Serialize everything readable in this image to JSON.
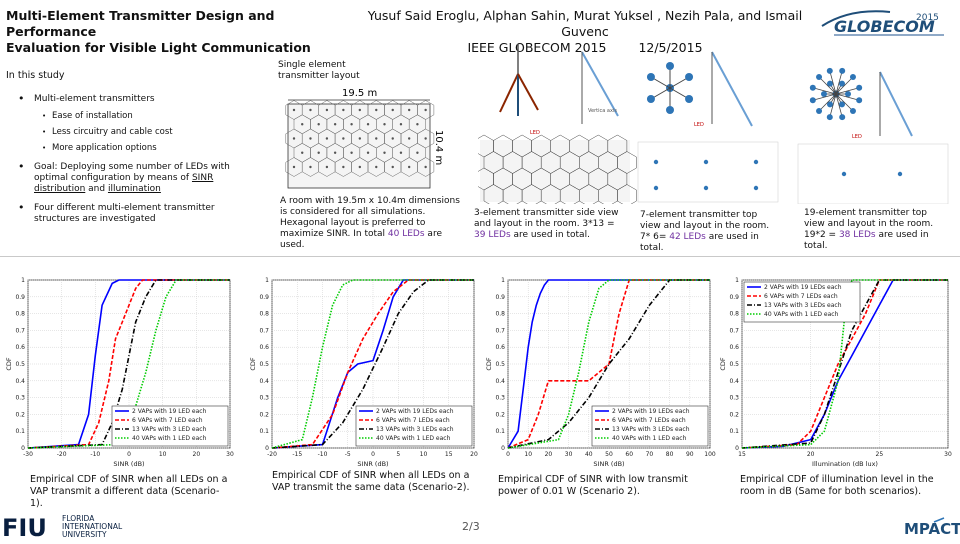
{
  "header": {
    "title_line1": "Multi-Element Transmitter Design and Performance",
    "title_line2": "Evaluation for Visible Light Communication",
    "authors": "Yusuf Said Eroglu, Alphan Sahin, Murat Yuksel , Ismail Guvenc",
    "authors_full": "Yusuf Said Eroglu, Alphan Sahin, Murat Yuksel , Nezih Pala, and Ismail Guvenc",
    "venue": "IEEE GLOBECOM 2015",
    "date": "12/5/2015"
  },
  "study": {
    "heading": "In this study",
    "bullet1": "Multi-element transmitters",
    "sub": [
      "Ease of installation",
      "Less circuitry and cable cost",
      "More application options"
    ],
    "bullet2_a": "Goal: Deploying some number of LEDs with optimal configuration by means of ",
    "bullet2_u1": "SINR distribution",
    "bullet2_b": " and ",
    "bullet2_u2": "illumination",
    "bullet3": "Four  different multi-element transmitter structures are investigated"
  },
  "single": {
    "label_line1": "Single element",
    "label_line2": "transmitter layout",
    "room_width": "19.5 m",
    "room_height": "10.4 m",
    "caption_a": "A room with 19.5m x 10.4m dimensions is considered for all simulations.  Hexagonal layout is preferred to maximize SINR. In total ",
    "caption_leds": "40 LEDs",
    "caption_b": " are used."
  },
  "structures": [
    {
      "caption_a": "3-element transmitter side view and layout in the room. 3*13 = ",
      "leds": "39 LEDs",
      "caption_b": " are used in total.",
      "label1": "LED",
      "label2": "Vertica axis"
    },
    {
      "caption_a": "7-element transmitter top view and layout in the room. 7* 6= ",
      "leds": "42 LEDs",
      "caption_b": " are used in total.",
      "label1": "LED"
    },
    {
      "caption_a": "19-element transmitter top view and layout in the room. 19*2 = ",
      "leds": "38 LEDs",
      "caption_b": " are used in total.",
      "label1": "LED"
    }
  ],
  "chart_data": [
    {
      "type": "line",
      "title": "",
      "xlabel": "SINR (dB)",
      "ylabel": "CDF",
      "xlim": [
        -30,
        30
      ],
      "ylim": [
        0,
        1
      ],
      "xticks": [
        "-30",
        "-20",
        "-10",
        "0",
        "10",
        "20",
        "30"
      ],
      "yticks": [
        "0",
        "0.1",
        "0.2",
        "0.3",
        "0.4",
        "0.5",
        "0.6",
        "0.7",
        "0.8",
        "0.9",
        "1"
      ],
      "legend_position": "bottom-right",
      "series": [
        {
          "name": "2 VAPs with 19 LED each",
          "color": "#0000ff",
          "style": "solid",
          "x": [
            -30,
            -15,
            -12,
            -10,
            -8,
            -5,
            -3,
            30
          ],
          "y": [
            0,
            0.02,
            0.2,
            0.55,
            0.85,
            0.98,
            1.0,
            1.0
          ]
        },
        {
          "name": "6 VAPs with 7 LED each",
          "color": "#ff0000",
          "style": "dashed",
          "x": [
            -30,
            -12,
            -9,
            -6,
            -4,
            -2,
            0,
            2,
            4,
            30
          ],
          "y": [
            0,
            0.02,
            0.15,
            0.4,
            0.65,
            0.75,
            0.85,
            0.95,
            1.0,
            1.0
          ]
        },
        {
          "name": "13 VAPs with 3 LED each",
          "color": "#000000",
          "style": "dashdot",
          "x": [
            -30,
            -8,
            -5,
            -2,
            0,
            2,
            5,
            8,
            30
          ],
          "y": [
            0,
            0.02,
            0.15,
            0.35,
            0.55,
            0.75,
            0.9,
            1.0,
            1.0
          ]
        },
        {
          "name": "40 VAPs with 1 LED each",
          "color": "#00cc00",
          "style": "dotted",
          "x": [
            -30,
            -4,
            -1,
            2,
            5,
            8,
            11,
            14,
            30
          ],
          "y": [
            0,
            0.02,
            0.1,
            0.25,
            0.45,
            0.7,
            0.9,
            1.0,
            1.0
          ]
        }
      ],
      "caption": "Empirical CDF of SINR when all LEDs on a VAP transmit a different data (Scenario-1)."
    },
    {
      "type": "line",
      "title": "",
      "xlabel": "SINR (dB)",
      "ylabel": "CDF",
      "xlim": [
        -20,
        20
      ],
      "ylim": [
        0,
        1
      ],
      "xticks": [
        "-20",
        "-15",
        "-10",
        "-5",
        "0",
        "5",
        "10",
        "15",
        "20"
      ],
      "yticks": [
        "0",
        "0.1",
        "0.2",
        "0.3",
        "0.4",
        "0.5",
        "0.6",
        "0.7",
        "0.8",
        "0.9",
        "1"
      ],
      "legend_position": "bottom-right",
      "series": [
        {
          "name": "2 VAPs with 19 LEDs each",
          "color": "#0000ff",
          "style": "solid",
          "x": [
            -20,
            -10,
            -7,
            -5,
            -3,
            0,
            2,
            4,
            6,
            20
          ],
          "y": [
            0,
            0.02,
            0.3,
            0.45,
            0.5,
            0.52,
            0.7,
            0.9,
            1.0,
            1.0
          ]
        },
        {
          "name": "6 VAPs with 7 LEDs each",
          "color": "#ff0000",
          "style": "dashed",
          "x": [
            -20,
            -12,
            -8,
            -5,
            -2,
            1,
            4,
            7,
            20
          ],
          "y": [
            0,
            0.02,
            0.2,
            0.45,
            0.65,
            0.8,
            0.93,
            1.0,
            1.0
          ]
        },
        {
          "name": "13 VAPs with 3 LEDs each",
          "color": "#000000",
          "style": "dashdot",
          "x": [
            -20,
            -10,
            -6,
            -2,
            2,
            5,
            8,
            11,
            20
          ],
          "y": [
            0,
            0.02,
            0.15,
            0.35,
            0.6,
            0.8,
            0.93,
            1.0,
            1.0
          ]
        },
        {
          "name": "40 VAPs with 1 LED each",
          "color": "#00cc00",
          "style": "dotted",
          "x": [
            -20,
            -14,
            -12,
            -10,
            -8,
            -6,
            -4,
            20
          ],
          "y": [
            0,
            0.05,
            0.3,
            0.6,
            0.85,
            0.97,
            1.0,
            1.0
          ]
        }
      ],
      "caption": "Empirical CDF of SINR when all LEDs on a VAP transmit the same data (Scenario-2)."
    },
    {
      "type": "line",
      "title": "",
      "xlabel": "SINR (dB)",
      "ylabel": "CDF",
      "xlim": [
        0,
        100
      ],
      "ylim": [
        0,
        1
      ],
      "xticks": [
        "0",
        "10",
        "20",
        "30",
        "40",
        "50",
        "60",
        "70",
        "80",
        "90",
        "100"
      ],
      "yticks": [
        "0",
        "0.1",
        "0.2",
        "0.3",
        "0.4",
        "0.5",
        "0.6",
        "0.7",
        "0.8",
        "0.9",
        "1"
      ],
      "legend_position": "bottom-right",
      "series": [
        {
          "name": "2 VAPs with 19 LEDs each",
          "color": "#0000ff",
          "style": "solid",
          "x": [
            0,
            5,
            8,
            10,
            12,
            14,
            16,
            18,
            20,
            100
          ],
          "y": [
            0,
            0.1,
            0.4,
            0.6,
            0.75,
            0.85,
            0.92,
            0.97,
            1.0,
            1.0
          ]
        },
        {
          "name": "6 VAPs with 7 LEDs each",
          "color": "#ff0000",
          "style": "dashed",
          "x": [
            0,
            10,
            15,
            20,
            30,
            40,
            50,
            55,
            60,
            100
          ],
          "y": [
            0,
            0.05,
            0.2,
            0.4,
            0.4,
            0.4,
            0.5,
            0.8,
            1.0,
            1.0
          ]
        },
        {
          "name": "13 VAPs with 3 LEDs each",
          "color": "#000000",
          "style": "dashdot",
          "x": [
            0,
            20,
            30,
            40,
            50,
            60,
            70,
            80,
            100
          ],
          "y": [
            0,
            0.05,
            0.15,
            0.3,
            0.5,
            0.65,
            0.85,
            1.0,
            1.0
          ]
        },
        {
          "name": "40 VAPs with 1 LED each",
          "color": "#00cc00",
          "style": "dotted",
          "x": [
            0,
            25,
            30,
            35,
            40,
            45,
            50,
            100
          ],
          "y": [
            0,
            0.05,
            0.2,
            0.45,
            0.75,
            0.95,
            1.0,
            1.0
          ]
        }
      ],
      "caption": "Empirical CDF of SINR with low transmit power of 0.01 W (Scenario 2)."
    },
    {
      "type": "line",
      "title": "",
      "xlabel": "Illumination (dB lux)",
      "ylabel": "CDF",
      "xlim": [
        15,
        30
      ],
      "ylim": [
        0,
        1
      ],
      "xticks": [
        "15",
        "20",
        "25",
        "30"
      ],
      "yticks": [
        "0",
        "0.1",
        "0.2",
        "0.3",
        "0.4",
        "0.5",
        "0.6",
        "0.7",
        "0.8",
        "0.9",
        "1"
      ],
      "legend_position": "top-left",
      "series": [
        {
          "name": "2 VAPs with 19 LEDs each",
          "color": "#0000ff",
          "style": "solid",
          "x": [
            15,
            18,
            20,
            21,
            22,
            23,
            24,
            25,
            26,
            30
          ],
          "y": [
            0,
            0.01,
            0.05,
            0.2,
            0.4,
            0.55,
            0.7,
            0.85,
            1.0,
            1.0
          ]
        },
        {
          "name": "6 VAPs with 7 LEDs each",
          "color": "#ff0000",
          "style": "dashed",
          "x": [
            15,
            19,
            20,
            21,
            22,
            23,
            24,
            25,
            30
          ],
          "y": [
            0,
            0.02,
            0.1,
            0.3,
            0.5,
            0.65,
            0.8,
            1.0,
            1.0
          ]
        },
        {
          "name": "13 VAPs with 3 LEDs each",
          "color": "#000000",
          "style": "dashdot",
          "x": [
            15,
            20,
            21,
            22,
            23,
            24,
            25,
            30
          ],
          "y": [
            0,
            0.03,
            0.2,
            0.45,
            0.7,
            0.85,
            1.0,
            1.0
          ]
        },
        {
          "name": "40 VAPs with 1 LED each",
          "color": "#00cc00",
          "style": "dotted",
          "x": [
            15,
            20,
            21,
            22,
            22.5,
            23,
            30
          ],
          "y": [
            0,
            0.02,
            0.1,
            0.4,
            0.8,
            1.0,
            1.0
          ]
        }
      ],
      "caption": "Empirical CDF of illumination level in the room in dB (Same for both scenarios)."
    }
  ],
  "footer": {
    "page": "2/3",
    "logo_fiu": "FIU",
    "logo_fiu_line1": "FLORIDA",
    "logo_fiu_line2": "INTERNATIONAL",
    "logo_fiu_line3": "UNIVERSITY",
    "logo_globecom": "GLOBECOM",
    "logo_globecom_year": "2015",
    "logo_mpact": "MPACT"
  },
  "colors": {
    "accent_red": "#c00000",
    "accent_purple": "#7030a0",
    "led_blue": "#2e75b6"
  }
}
